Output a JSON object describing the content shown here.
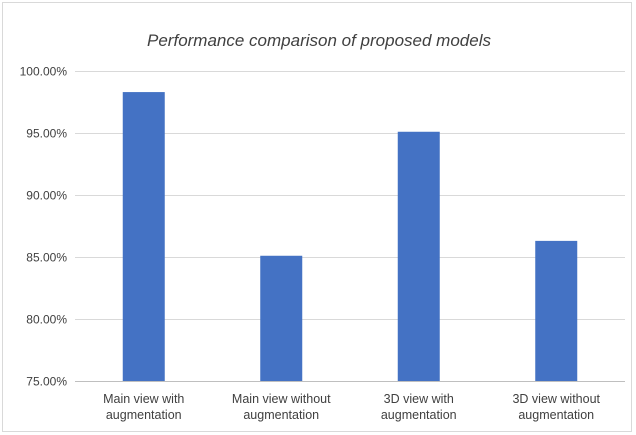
{
  "chart_data": {
    "type": "bar",
    "title": "Performance comparison of proposed models",
    "xlabel": "",
    "ylabel": "",
    "categories": [
      [
        "Main view with",
        "augmentation"
      ],
      [
        "Main view without",
        "augmentation"
      ],
      [
        "3D view with",
        "augmentation"
      ],
      [
        "3D view without",
        "augmentation"
      ]
    ],
    "values": [
      98.3,
      85.1,
      95.1,
      86.3
    ],
    "ylim": [
      75,
      100
    ],
    "yticks": [
      75,
      80,
      85,
      90,
      95,
      100
    ],
    "ytick_labels": [
      "75.00%",
      "80.00%",
      "85.00%",
      "90.00%",
      "95.00%",
      "100.00%"
    ],
    "grid": true,
    "legend": "none",
    "bar_color": "#4472c4"
  }
}
